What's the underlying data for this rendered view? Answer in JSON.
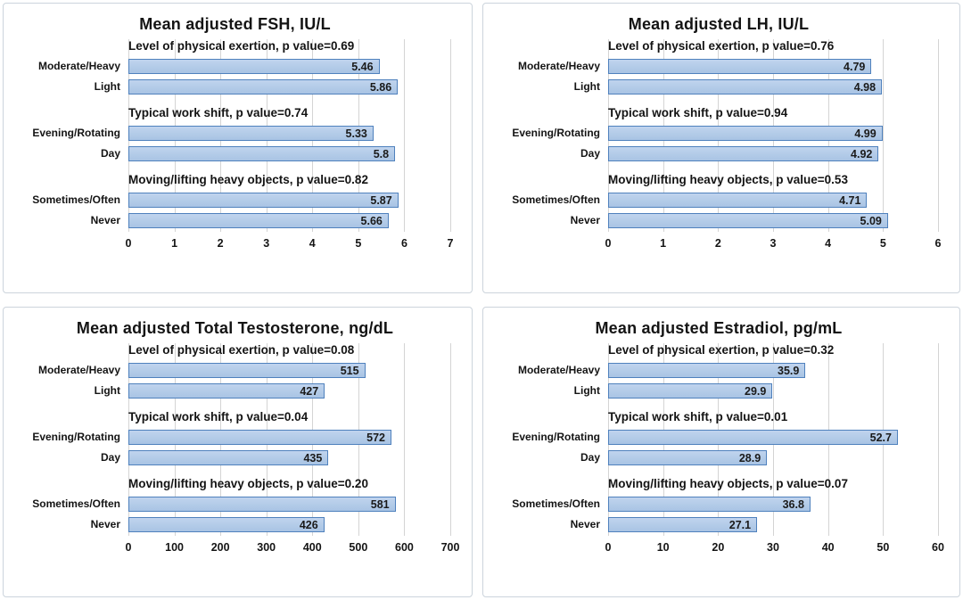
{
  "style": {
    "bar_fill": "#b3cbe8",
    "bar_border": "#4f81bd",
    "gridline_color": "#d4d4d4",
    "panel_border": "#ccd4dc",
    "text_color": "#141414"
  },
  "chart_data": [
    {
      "type": "bar",
      "orientation": "horizontal",
      "title": "Mean adjusted FSH, IU/L",
      "xlabel": "",
      "ylabel": "",
      "xlim": [
        0,
        7
      ],
      "xticks": [
        0,
        1,
        2,
        3,
        4,
        5,
        6,
        7
      ],
      "grid": true,
      "legend": false,
      "groups": [
        {
          "annotation": "Level of physical exertion, p value=0.69",
          "categories": [
            "Moderate/Heavy",
            "Light"
          ],
          "values": [
            5.46,
            5.86
          ],
          "labels": [
            "5.46",
            "5.86"
          ]
        },
        {
          "annotation": "Typical work shift, p value=0.74",
          "categories": [
            "Evening/Rotating",
            "Day"
          ],
          "values": [
            5.33,
            5.8
          ],
          "labels": [
            "5.33",
            "5.8"
          ]
        },
        {
          "annotation": "Moving/lifting heavy objects, p value=0.82",
          "categories": [
            "Sometimes/Often",
            "Never"
          ],
          "values": [
            5.87,
            5.66
          ],
          "labels": [
            "5.87",
            "5.66"
          ]
        }
      ]
    },
    {
      "type": "bar",
      "orientation": "horizontal",
      "title": "Mean adjusted LH, IU/L",
      "xlabel": "",
      "ylabel": "",
      "xlim": [
        0,
        6
      ],
      "xticks": [
        0,
        1,
        2,
        3,
        4,
        5,
        6
      ],
      "grid": true,
      "legend": false,
      "groups": [
        {
          "annotation": "Level of physical exertion, p value=0.76",
          "categories": [
            "Moderate/Heavy",
            "Light"
          ],
          "values": [
            4.79,
            4.98
          ],
          "labels": [
            "4.79",
            "4.98"
          ]
        },
        {
          "annotation": "Typical work shift, p value=0.94",
          "categories": [
            "Evening/Rotating",
            "Day"
          ],
          "values": [
            4.99,
            4.92
          ],
          "labels": [
            "4.99",
            "4.92"
          ]
        },
        {
          "annotation": "Moving/lifting heavy objects, p value=0.53",
          "categories": [
            "Sometimes/Often",
            "Never"
          ],
          "values": [
            4.71,
            5.09
          ],
          "labels": [
            "4.71",
            "5.09"
          ]
        }
      ]
    },
    {
      "type": "bar",
      "orientation": "horizontal",
      "title": "Mean adjusted Total Testosterone, ng/dL",
      "xlabel": "",
      "ylabel": "",
      "xlim": [
        0,
        700
      ],
      "xticks": [
        0,
        100,
        200,
        300,
        400,
        500,
        600,
        700
      ],
      "grid": true,
      "legend": false,
      "groups": [
        {
          "annotation": "Level of physical exertion, p value=0.08",
          "categories": [
            "Moderate/Heavy",
            "Light"
          ],
          "values": [
            515,
            427
          ],
          "labels": [
            "515",
            "427"
          ]
        },
        {
          "annotation": "Typical work shift, p value=0.04",
          "categories": [
            "Evening/Rotating",
            "Day"
          ],
          "values": [
            572,
            435
          ],
          "labels": [
            "572",
            "435"
          ]
        },
        {
          "annotation": "Moving/lifting heavy objects, p value=0.20",
          "categories": [
            "Sometimes/Often",
            "Never"
          ],
          "values": [
            581,
            426
          ],
          "labels": [
            "581",
            "426"
          ]
        }
      ]
    },
    {
      "type": "bar",
      "orientation": "horizontal",
      "title": "Mean adjusted Estradiol, pg/mL",
      "xlabel": "",
      "ylabel": "",
      "xlim": [
        0,
        60
      ],
      "xticks": [
        0,
        10,
        20,
        30,
        40,
        50,
        60
      ],
      "grid": true,
      "legend": false,
      "groups": [
        {
          "annotation": "Level of physical exertion, p value=0.32",
          "categories": [
            "Moderate/Heavy",
            "Light"
          ],
          "values": [
            35.9,
            29.9
          ],
          "labels": [
            "35.9",
            "29.9"
          ]
        },
        {
          "annotation": "Typical work shift, p value=0.01",
          "categories": [
            "Evening/Rotating",
            "Day"
          ],
          "values": [
            52.7,
            28.9
          ],
          "labels": [
            "52.7",
            "28.9"
          ]
        },
        {
          "annotation": "Moving/lifting heavy objects, p value=0.07",
          "categories": [
            "Sometimes/Often",
            "Never"
          ],
          "values": [
            36.8,
            27.1
          ],
          "labels": [
            "36.8",
            "27.1"
          ]
        }
      ]
    }
  ]
}
